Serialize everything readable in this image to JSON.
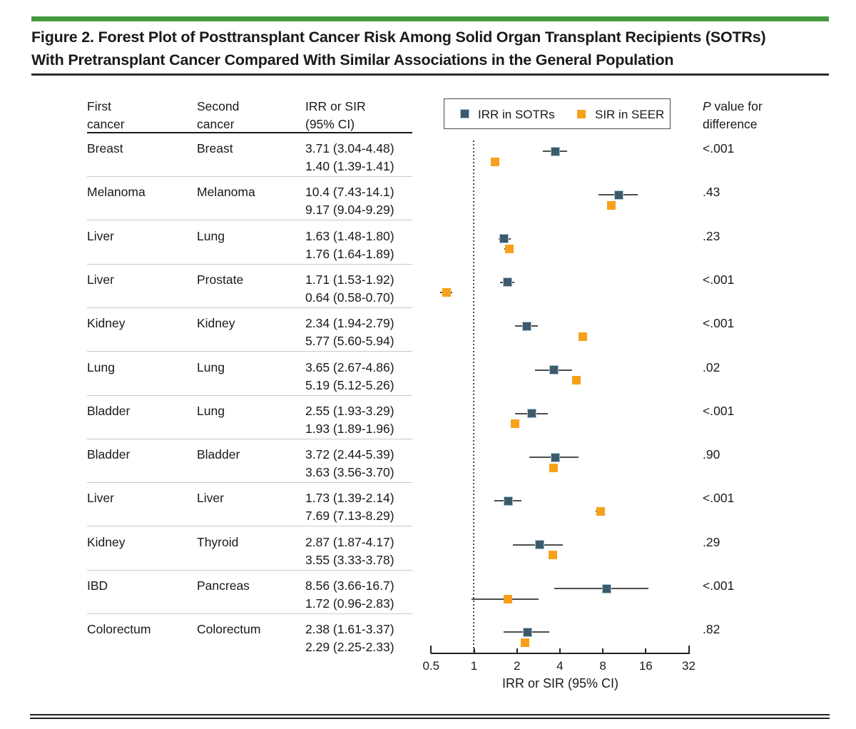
{
  "figure": {
    "title_line1": "Figure 2. Forest Plot of Posttransplant Cancer Risk Among Solid Organ Transplant Recipients (SOTRs)",
    "title_line2": "With Pretransplant Cancer Compared With Similar Associations in the General Population"
  },
  "table_headers": {
    "first_cancer": "First\ncancer",
    "second_cancer": "Second\ncancer",
    "estimate": "IRR or SIR\n(95% CI)"
  },
  "pvalue_header": {
    "p_italic": "P",
    "line1_rest": " value for",
    "line2": "difference"
  },
  "legend": {
    "sotr_label": "IRR in SOTRs",
    "seer_label": "SIR in SEER"
  },
  "colors": {
    "sotr_marker": "#3c5a6b",
    "seer_marker": "#f7a11a",
    "accent_green": "#449a3e",
    "ci_line": "#4d4d4d"
  },
  "chart_data": {
    "type": "forest",
    "xlabel": "IRR or SIR (95% CI)",
    "x_scale": "log2",
    "x_ticks": [
      0.5,
      1,
      2,
      4,
      8,
      16,
      32
    ],
    "xlim": [
      0.5,
      32
    ],
    "reference_line": 1,
    "series_names": [
      "IRR in SOTRs",
      "SIR in SEER"
    ],
    "rows": [
      {
        "first_cancer": "Breast",
        "second_cancer": "Breast",
        "sotr": {
          "est": 3.71,
          "lo": 3.04,
          "hi": 4.48,
          "label": "3.71 (3.04-4.48)"
        },
        "seer": {
          "est": 1.4,
          "lo": 1.39,
          "hi": 1.41,
          "label": "1.40 (1.39-1.41)"
        },
        "p": "<.001"
      },
      {
        "first_cancer": "Melanoma",
        "second_cancer": "Melanoma",
        "sotr": {
          "est": 10.4,
          "lo": 7.43,
          "hi": 14.1,
          "label": "10.4 (7.43-14.1)"
        },
        "seer": {
          "est": 9.17,
          "lo": 9.04,
          "hi": 9.29,
          "label": "9.17 (9.04-9.29)"
        },
        "p": ".43"
      },
      {
        "first_cancer": "Liver",
        "second_cancer": "Lung",
        "sotr": {
          "est": 1.63,
          "lo": 1.48,
          "hi": 1.8,
          "label": "1.63 (1.48-1.80)"
        },
        "seer": {
          "est": 1.76,
          "lo": 1.64,
          "hi": 1.89,
          "label": "1.76 (1.64-1.89)"
        },
        "p": ".23"
      },
      {
        "first_cancer": "Liver",
        "second_cancer": "Prostate",
        "sotr": {
          "est": 1.71,
          "lo": 1.53,
          "hi": 1.92,
          "label": "1.71 (1.53-1.92)"
        },
        "seer": {
          "est": 0.64,
          "lo": 0.58,
          "hi": 0.7,
          "label": "0.64 (0.58-0.70)"
        },
        "p": "<.001"
      },
      {
        "first_cancer": "Kidney",
        "second_cancer": "Kidney",
        "sotr": {
          "est": 2.34,
          "lo": 1.94,
          "hi": 2.79,
          "label": "2.34 (1.94-2.79)"
        },
        "seer": {
          "est": 5.77,
          "lo": 5.6,
          "hi": 5.94,
          "label": "5.77 (5.60-5.94)"
        },
        "p": "<.001"
      },
      {
        "first_cancer": "Lung",
        "second_cancer": "Lung",
        "sotr": {
          "est": 3.65,
          "lo": 2.67,
          "hi": 4.86,
          "label": "3.65 (2.67-4.86)"
        },
        "seer": {
          "est": 5.19,
          "lo": 5.12,
          "hi": 5.26,
          "label": "5.19 (5.12-5.26)"
        },
        "p": ".02"
      },
      {
        "first_cancer": "Bladder",
        "second_cancer": "Lung",
        "sotr": {
          "est": 2.55,
          "lo": 1.93,
          "hi": 3.29,
          "label": "2.55 (1.93-3.29)"
        },
        "seer": {
          "est": 1.93,
          "lo": 1.89,
          "hi": 1.96,
          "label": "1.93 (1.89-1.96)"
        },
        "p": "<.001"
      },
      {
        "first_cancer": "Bladder",
        "second_cancer": "Bladder",
        "sotr": {
          "est": 3.72,
          "lo": 2.44,
          "hi": 5.39,
          "label": "3.72 (2.44-5.39)"
        },
        "seer": {
          "est": 3.63,
          "lo": 3.56,
          "hi": 3.7,
          "label": "3.63 (3.56-3.70)"
        },
        "p": ".90"
      },
      {
        "first_cancer": "Liver",
        "second_cancer": "Liver",
        "sotr": {
          "est": 1.73,
          "lo": 1.39,
          "hi": 2.14,
          "label": "1.73 (1.39-2.14)"
        },
        "seer": {
          "est": 7.69,
          "lo": 7.13,
          "hi": 8.29,
          "label": "7.69 (7.13-8.29)"
        },
        "p": "<.001"
      },
      {
        "first_cancer": "Kidney",
        "second_cancer": "Thyroid",
        "sotr": {
          "est": 2.87,
          "lo": 1.87,
          "hi": 4.17,
          "label": "2.87 (1.87-4.17)"
        },
        "seer": {
          "est": 3.55,
          "lo": 3.33,
          "hi": 3.78,
          "label": "3.55 (3.33-3.78)"
        },
        "p": ".29"
      },
      {
        "first_cancer": "IBD",
        "second_cancer": "Pancreas",
        "sotr": {
          "est": 8.56,
          "lo": 3.66,
          "hi": 16.7,
          "label": "8.56 (3.66-16.7)"
        },
        "seer": {
          "est": 1.72,
          "lo": 0.96,
          "hi": 2.83,
          "label": "1.72 (0.96-2.83)"
        },
        "p": "<.001"
      },
      {
        "first_cancer": "Colorectum",
        "second_cancer": "Colorectum",
        "sotr": {
          "est": 2.38,
          "lo": 1.61,
          "hi": 3.37,
          "label": "2.38 (1.61-3.37)"
        },
        "seer": {
          "est": 2.29,
          "lo": 2.25,
          "hi": 2.33,
          "label": "2.29 (2.25-2.33)"
        },
        "p": ".82"
      }
    ]
  }
}
